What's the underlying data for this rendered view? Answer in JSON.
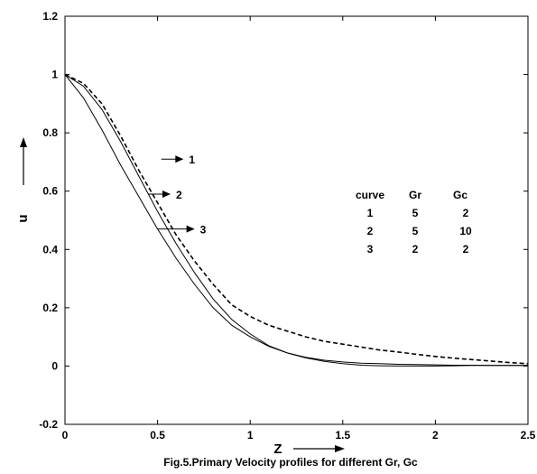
{
  "chart_data": {
    "type": "line",
    "title": "",
    "caption": "Fig.5.Primary  Velocity profiles  for different Gr, Gc",
    "xlabel": "Z",
    "ylabel": "u",
    "xlim": [
      0,
      2.5
    ],
    "ylim": [
      -0.2,
      1.2
    ],
    "xticks": [
      "0",
      "0.5",
      "1",
      "1.5",
      "2",
      "2.5"
    ],
    "yticks": [
      "-0.2",
      "0",
      "0.2",
      "0.4",
      "0.6",
      "0.8",
      "1",
      "1.2"
    ],
    "grid": false,
    "series": [
      {
        "name": "1",
        "style": "solid",
        "x": [
          0,
          0.1,
          0.2,
          0.3,
          0.4,
          0.5,
          0.6,
          0.7,
          0.8,
          0.9,
          1.0,
          1.1,
          1.2,
          1.3,
          1.4,
          1.5,
          1.6,
          1.7,
          1.8,
          1.9,
          2.0,
          2.1,
          2.2,
          2.3,
          2.4,
          2.5
        ],
        "y": [
          1.0,
          0.96,
          0.88,
          0.77,
          0.65,
          0.53,
          0.42,
          0.32,
          0.23,
          0.16,
          0.11,
          0.07,
          0.045,
          0.03,
          0.02,
          0.014,
          0.01,
          0.008,
          0.006,
          0.005,
          0.004,
          0.003,
          0.003,
          0.002,
          0.002,
          0.002
        ]
      },
      {
        "name": "2",
        "style": "dashed",
        "x": [
          0,
          0.1,
          0.2,
          0.3,
          0.4,
          0.5,
          0.6,
          0.7,
          0.8,
          0.9,
          1.0,
          1.1,
          1.2,
          1.3,
          1.4,
          1.5,
          1.6,
          1.7,
          1.8,
          1.9,
          2.0,
          2.1,
          2.2,
          2.3,
          2.4,
          2.5
        ],
        "y": [
          1.0,
          0.97,
          0.9,
          0.79,
          0.67,
          0.56,
          0.45,
          0.36,
          0.28,
          0.21,
          0.17,
          0.14,
          0.12,
          0.1,
          0.085,
          0.075,
          0.065,
          0.055,
          0.048,
          0.04,
          0.033,
          0.027,
          0.022,
          0.017,
          0.012,
          0.008
        ]
      },
      {
        "name": "3",
        "style": "solid",
        "x": [
          0,
          0.1,
          0.2,
          0.3,
          0.4,
          0.5,
          0.6,
          0.7,
          0.8,
          0.9,
          1.0,
          1.1,
          1.2,
          1.3,
          1.4,
          1.5,
          1.6,
          1.7,
          1.8,
          1.9,
          2.0,
          2.1,
          2.2,
          2.3,
          2.4,
          2.5
        ],
        "y": [
          1.0,
          0.92,
          0.81,
          0.69,
          0.58,
          0.47,
          0.37,
          0.28,
          0.2,
          0.14,
          0.1,
          0.068,
          0.045,
          0.028,
          0.016,
          0.008,
          0.003,
          0.001,
          0.0,
          0.0,
          0.0,
          0.001,
          0.002,
          0.002,
          0.002,
          0.002
        ]
      }
    ],
    "annotations": [
      {
        "label": "1",
        "from": [
          0.52,
          0.71
        ],
        "to": [
          0.64,
          0.71
        ]
      },
      {
        "label": "2",
        "from": [
          0.45,
          0.59
        ],
        "to": [
          0.57,
          0.59
        ]
      },
      {
        "label": "3",
        "from": [
          0.5,
          0.47
        ],
        "to": [
          0.7,
          0.47
        ]
      }
    ],
    "legend_table": {
      "headers": [
        "curve",
        "Gr",
        "Gc"
      ],
      "rows": [
        [
          "1",
          "5",
          "2"
        ],
        [
          "2",
          "5",
          "10"
        ],
        [
          "3",
          "2",
          "2"
        ]
      ]
    }
  }
}
